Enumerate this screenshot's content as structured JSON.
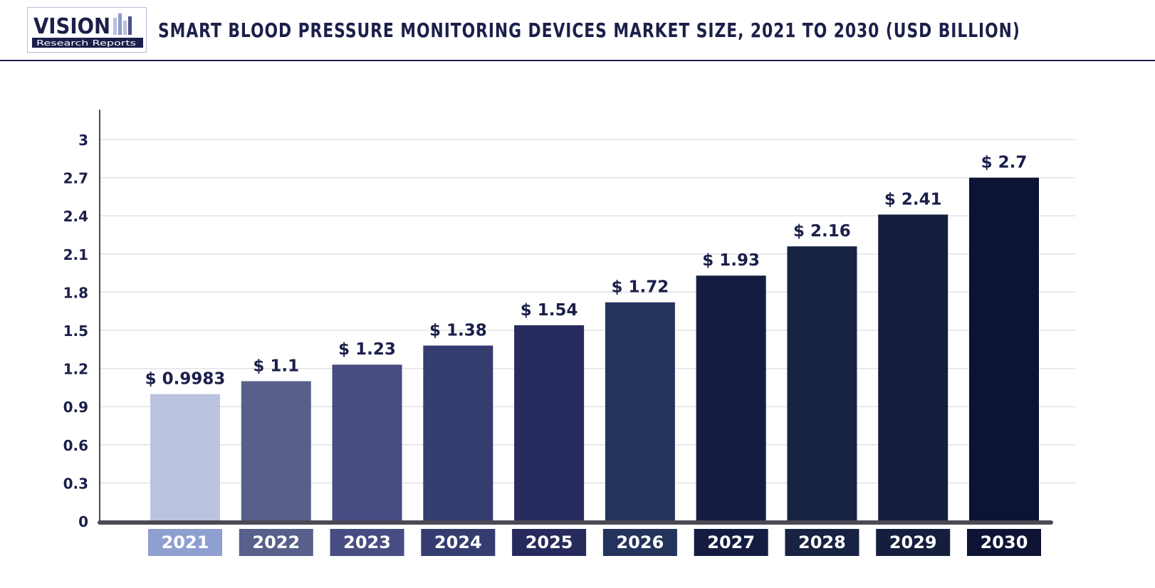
{
  "header": {
    "logo_main": "VISION",
    "logo_sub": "Research Reports",
    "title": "SMART BLOOD PRESSURE MONITORING DEVICES MARKET  SIZE, 2021 TO 2030 (USD BILLION)"
  },
  "colors": {
    "axis": "#4a4a55",
    "grid": "#e2e2e6",
    "text": "#1b1f4a",
    "bars": [
      "#bcc3df",
      "#575f8a",
      "#474c82",
      "#353c70",
      "#262a5c",
      "#24335c",
      "#141c42",
      "#182242",
      "#151e3c",
      "#0d1335"
    ],
    "category_boxes": [
      "#8f9fcf",
      "#575f8a",
      "#474c82",
      "#353c70",
      "#262a5c",
      "#24335c",
      "#141c42",
      "#182242",
      "#151e3c",
      "#0d1335"
    ]
  },
  "chart_data": {
    "type": "bar",
    "title": "SMART BLOOD PRESSURE MONITORING DEVICES MARKET  SIZE, 2021 TO 2030 (USD BILLION)",
    "xlabel": "",
    "ylabel": "",
    "categories": [
      "2021",
      "2022",
      "2023",
      "2024",
      "2025",
      "2026",
      "2027",
      "2028",
      "2029",
      "2030"
    ],
    "values": [
      0.9983,
      1.1,
      1.23,
      1.38,
      1.54,
      1.72,
      1.93,
      2.16,
      2.41,
      2.7
    ],
    "data_labels": [
      "$ 0.9983",
      "$ 1.1",
      "$ 1.23",
      "$ 1.38",
      "$ 1.54",
      "$ 1.72",
      "$ 1.93",
      "$ 2.16",
      "$ 2.41",
      "$ 2.7"
    ],
    "ylim": [
      0,
      3
    ],
    "yticks": [
      0,
      0.3,
      0.6,
      0.9,
      1.2,
      1.5,
      1.8,
      2.1,
      2.4,
      2.7,
      3
    ],
    "ytick_labels": [
      "0",
      "0.3",
      "0.6",
      "0.9",
      "1.2",
      "1.5",
      "1.8",
      "2.1",
      "2.4",
      "2.7",
      "3"
    ],
    "grid": true,
    "legend": "none"
  }
}
